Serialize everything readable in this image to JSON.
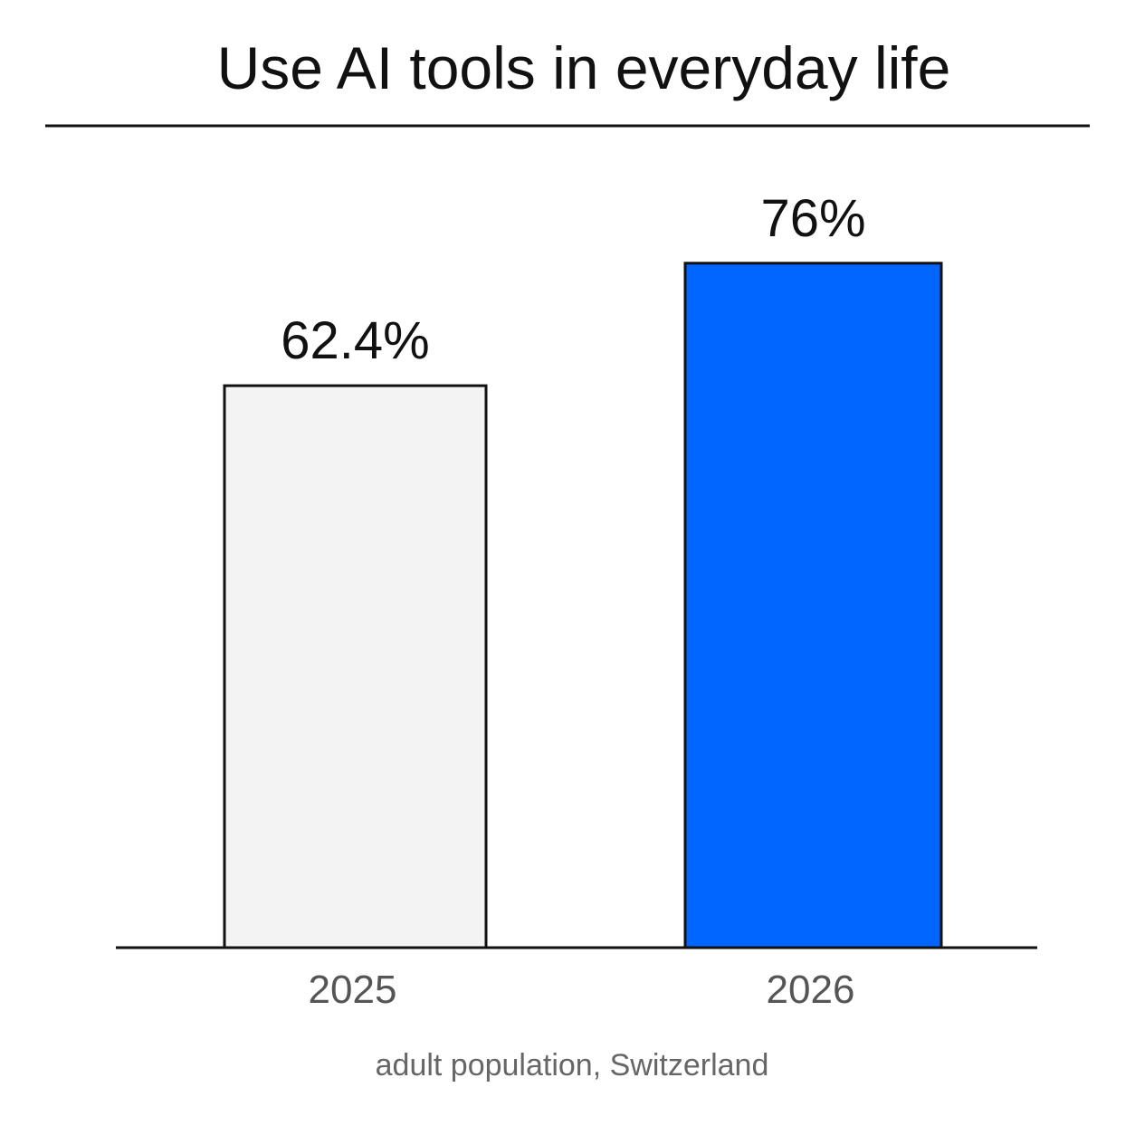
{
  "chart_data": {
    "type": "bar",
    "title": "Use AI tools in everyday life",
    "categories": [
      "2025",
      "2026"
    ],
    "values": [
      62.4,
      76
    ],
    "value_labels": [
      "62.4%",
      "76%"
    ],
    "bar_colors": [
      "#f3f3f3",
      "#0066ff"
    ],
    "bar_stroke": "#111111",
    "ylim": [
      0,
      100
    ],
    "grid": false,
    "legend": "none",
    "xlabel": "",
    "ylabel": "",
    "note": "adult population, Switzerland"
  }
}
